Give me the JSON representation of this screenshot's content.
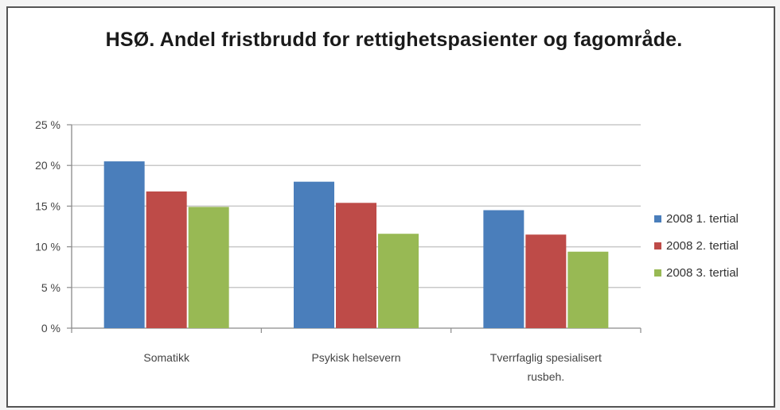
{
  "chart_data": {
    "type": "bar",
    "title": "HSØ. Andel fristbrudd for rettighetspasienter og fagområde.",
    "categories": [
      "Somatikk",
      "Psykisk helsevern",
      "Tverrfaglig spesialisert rusbeh."
    ],
    "category_lines": [
      [
        "Somatikk"
      ],
      [
        "Psykisk helsevern"
      ],
      [
        "Tverrfaglig spesialisert",
        "rusbeh."
      ]
    ],
    "series": [
      {
        "name": "2008 1. tertial",
        "color": "#4a7ebb",
        "values": [
          20.5,
          18.0,
          14.5
        ]
      },
      {
        "name": "2008 2. tertial",
        "color": "#be4b48",
        "values": [
          16.8,
          15.4,
          11.5
        ]
      },
      {
        "name": "2008 3. tertial",
        "color": "#98b954",
        "values": [
          14.9,
          11.6,
          9.4
        ]
      }
    ],
    "yticks": [
      "0 %",
      "5 %",
      "10 %",
      "15 %",
      "20 %",
      "25 %"
    ],
    "ylim": [
      0,
      25
    ],
    "grid": true,
    "legend_position": "right",
    "xlabel": "",
    "ylabel": ""
  }
}
